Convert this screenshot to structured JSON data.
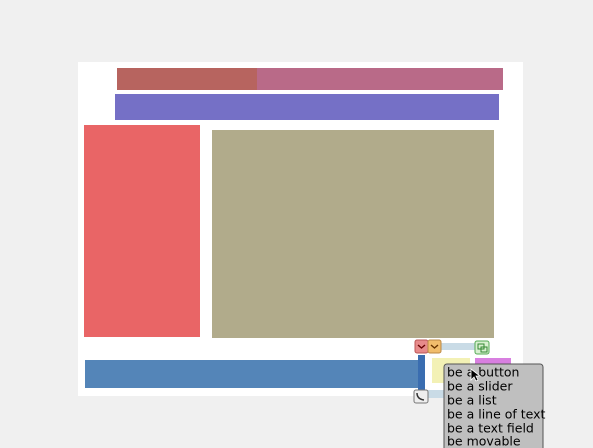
{
  "menu": {
    "items": [
      "be a button",
      "be a slider",
      "be a list",
      "be a line of text",
      "be a text field",
      "be movable"
    ]
  }
}
